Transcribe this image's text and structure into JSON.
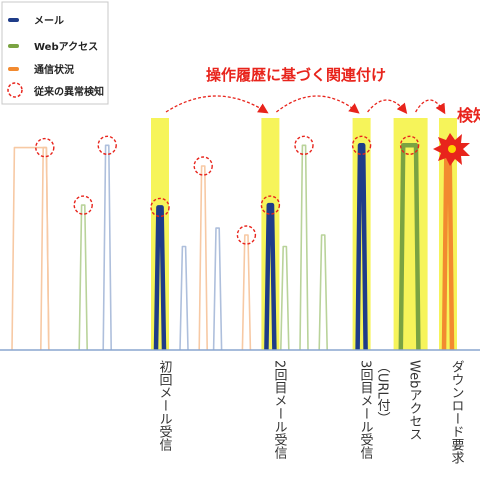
{
  "legend": {
    "items": [
      {
        "label": "メール",
        "color": "#1f3c88",
        "kind": "line"
      },
      {
        "label": "Webアクセス",
        "color": "#7aa342",
        "kind": "line"
      },
      {
        "label": "通信状況",
        "color": "#f28a30",
        "kind": "line"
      },
      {
        "label": "従来の異常検知",
        "color": "#e8241c",
        "kind": "dashed-circle"
      }
    ]
  },
  "annotation": {
    "text": "操作履歴に基づく関連付け",
    "color": "#e8241c"
  },
  "alert": {
    "text": "検知",
    "icon": "explosion-icon"
  },
  "events": [
    {
      "label": "初回メール受信"
    },
    {
      "label": "2回目メール受信"
    },
    {
      "label": "3回目メール受信",
      "sub": "（URL付）"
    },
    {
      "label": "Webアクセス"
    },
    {
      "label": "ダウンロード要求"
    }
  ],
  "chart_data": {
    "type": "line",
    "colors": {
      "mail": "#1f3c88",
      "mail_light": "#aebfdc",
      "web": "#7aa342",
      "web_light": "#b9d39a",
      "comm": "#f28a30",
      "comm_light": "#f7c9a4",
      "highlight": "#f6f45a",
      "detect": "#e8241c"
    },
    "ylim": [
      0,
      100
    ],
    "spikes": [
      {
        "x": 5,
        "y": 88,
        "series": "comm",
        "faded": true,
        "plateau": 6
      },
      {
        "x": 11,
        "y": 88,
        "series": "comm",
        "faded": true,
        "circled": true
      },
      {
        "x": 19,
        "y": 63,
        "series": "web",
        "faded": true,
        "circled": true
      },
      {
        "x": 24,
        "y": 89,
        "series": "mail",
        "faded": true,
        "circled": true
      },
      {
        "x": 35,
        "y": 62,
        "series": "mail",
        "faded": false,
        "circled": true,
        "highlight": true
      },
      {
        "x": 40,
        "y": 45,
        "series": "mail",
        "faded": true
      },
      {
        "x": 44,
        "y": 80,
        "series": "comm",
        "faded": true,
        "circled": true
      },
      {
        "x": 47,
        "y": 53,
        "series": "mail",
        "faded": true
      },
      {
        "x": 53,
        "y": 50,
        "series": "comm",
        "faded": true,
        "circled": true
      },
      {
        "x": 58,
        "y": 63,
        "series": "mail",
        "faded": false,
        "circled": true,
        "highlight": true
      },
      {
        "x": 61,
        "y": 45,
        "series": "web",
        "faded": true
      },
      {
        "x": 65,
        "y": 89,
        "series": "web",
        "faded": true,
        "circled": true
      },
      {
        "x": 69,
        "y": 50,
        "series": "web",
        "faded": true
      },
      {
        "x": 77,
        "y": 89,
        "series": "mail",
        "faded": false,
        "circled": true,
        "highlight": true
      },
      {
        "x": 86,
        "y": 89,
        "series": "web",
        "faded": false,
        "circled": true,
        "highlight": true,
        "plateau": 2
      },
      {
        "x": 95,
        "y": 88,
        "series": "comm",
        "faded": false,
        "detected": true,
        "highlight": true
      }
    ]
  }
}
